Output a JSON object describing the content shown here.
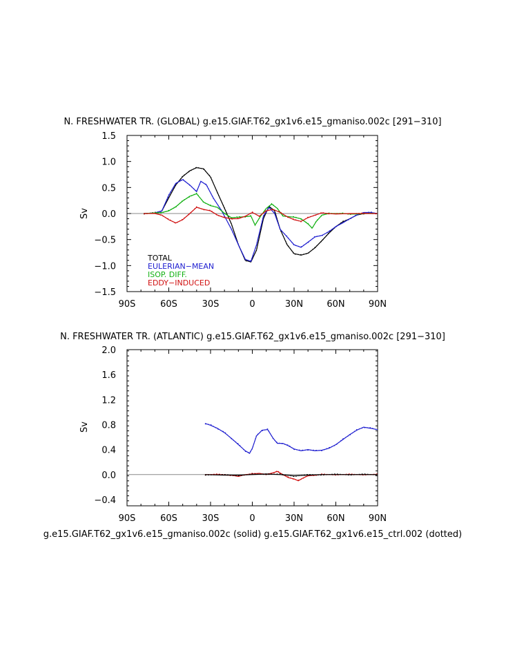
{
  "colors": {
    "total": "#000000",
    "eulerian": "#2020d0",
    "isop": "#10b010",
    "eddy": "#d01010",
    "zero_line": "#888888"
  },
  "footer": "g.e15.GIAF.T62_gx1v6.e15_gmaniso.002c (solid) g.e15.GIAF.T62_gx1v6.e15_ctrl.002 (dotted)",
  "chart_data": [
    {
      "type": "line",
      "title": "N. FRESHWATER TR. (GLOBAL) g.e15.GIAF.T62_gx1v6.e15_gmaniso.002c [291−310]",
      "ylabel": "Sv",
      "xlim": [
        -90,
        90
      ],
      "ylim": [
        -1.5,
        1.5
      ],
      "x_ticks": [
        -90,
        -60,
        -30,
        0,
        30,
        60,
        90
      ],
      "x_tick_labels": [
        "90S",
        "60S",
        "30S",
        "0",
        "30N",
        "60N",
        "90N"
      ],
      "y_ticks": [
        -1.5,
        -1.0,
        -0.5,
        0.0,
        0.5,
        1.0,
        1.5
      ],
      "y_tick_labels": [
        "−1.5",
        "−1.0",
        "−0.5",
        "0.0",
        "0.5",
        "1.0",
        "1.5"
      ],
      "legend": [
        "TOTAL",
        "EULERIAN−MEAN",
        "ISOP. DIFF.",
        "EDDY−INDUCED"
      ],
      "legend_placement": "lower-left",
      "series": [
        {
          "name": "TOTAL",
          "color": "total",
          "x": [
            -78,
            -70,
            -65,
            -60,
            -55,
            -50,
            -45,
            -40,
            -35,
            -30,
            -25,
            -20,
            -15,
            -10,
            -5,
            -1,
            3,
            8,
            12,
            16,
            20,
            25,
            30,
            35,
            40,
            45,
            50,
            55,
            60,
            65,
            70,
            75,
            80,
            85,
            90
          ],
          "y": [
            0,
            0.01,
            0.05,
            0.3,
            0.55,
            0.71,
            0.82,
            0.88,
            0.86,
            0.7,
            0.4,
            0.1,
            -0.2,
            -0.6,
            -0.9,
            -0.93,
            -0.7,
            -0.1,
            0.14,
            0.05,
            -0.3,
            -0.6,
            -0.77,
            -0.8,
            -0.76,
            -0.66,
            -0.52,
            -0.38,
            -0.25,
            -0.16,
            -0.1,
            -0.03,
            0,
            0.01,
            0
          ]
        },
        {
          "name": "EULERIAN−MEAN",
          "color": "eulerian",
          "x": [
            -78,
            -70,
            -65,
            -60,
            -55,
            -50,
            -45,
            -40,
            -37,
            -33,
            -28,
            -22,
            -15,
            -10,
            -5,
            -1,
            3,
            8,
            12,
            16,
            20,
            25,
            30,
            35,
            40,
            45,
            50,
            55,
            60,
            65,
            70,
            75,
            80,
            85,
            90
          ],
          "y": [
            0,
            0.01,
            0.05,
            0.35,
            0.58,
            0.65,
            0.55,
            0.42,
            0.62,
            0.55,
            0.3,
            0.05,
            -0.3,
            -0.6,
            -0.88,
            -0.92,
            -0.6,
            -0.05,
            0.12,
            0.0,
            -0.3,
            -0.45,
            -0.6,
            -0.65,
            -0.55,
            -0.45,
            -0.42,
            -0.35,
            -0.25,
            -0.18,
            -0.1,
            -0.03,
            0.02,
            0.02,
            0
          ]
        },
        {
          "name": "ISOP. DIFF.",
          "color": "isop",
          "x": [
            -78,
            -70,
            -65,
            -60,
            -55,
            -50,
            -45,
            -40,
            -35,
            -30,
            -25,
            -20,
            -15,
            -10,
            -5,
            -1,
            2,
            6,
            10,
            14,
            18,
            22,
            26,
            30,
            35,
            40,
            43,
            46,
            50,
            55,
            60,
            65,
            70,
            75,
            80,
            85,
            90
          ],
          "y": [
            0,
            0.01,
            0.02,
            0.05,
            0.13,
            0.24,
            0.33,
            0.38,
            0.22,
            0.15,
            0.12,
            0.0,
            -0.08,
            -0.07,
            -0.06,
            -0.05,
            -0.22,
            -0.05,
            0.1,
            0.18,
            0.1,
            -0.05,
            -0.06,
            -0.07,
            -0.1,
            -0.2,
            -0.28,
            -0.15,
            -0.03,
            0.0,
            0.0,
            0.0,
            -0.01,
            -0.01,
            0.0,
            0.0,
            0.0
          ]
        },
        {
          "name": "EDDY−INDUCED",
          "color": "eddy",
          "x": [
            -78,
            -70,
            -65,
            -60,
            -55,
            -50,
            -45,
            -40,
            -35,
            -30,
            -25,
            -20,
            -15,
            -10,
            -5,
            0,
            5,
            10,
            15,
            20,
            25,
            30,
            35,
            40,
            45,
            50,
            55,
            60,
            70,
            80,
            90
          ],
          "y": [
            0,
            0,
            -0.03,
            -0.12,
            -0.18,
            -0.12,
            0.0,
            0.12,
            0.08,
            0.05,
            -0.03,
            -0.08,
            -0.1,
            -0.1,
            -0.05,
            0.02,
            -0.05,
            0.05,
            0.08,
            0.02,
            -0.06,
            -0.12,
            -0.15,
            -0.08,
            -0.03,
            0.01,
            0.0,
            -0.01,
            0.0,
            0.0,
            0.0
          ]
        }
      ]
    },
    {
      "type": "line",
      "title": "N. FRESHWATER TR. (ATLANTIC) g.e15.GIAF.T62_gx1v6.e15_gmaniso.002c [291−310]",
      "ylabel": "Sv",
      "xlim": [
        -90,
        90
      ],
      "ylim": [
        -0.5,
        2.0
      ],
      "x_ticks": [
        -90,
        -60,
        -30,
        0,
        30,
        60,
        90
      ],
      "x_tick_labels": [
        "90S",
        "60S",
        "30S",
        "0",
        "30N",
        "60N",
        "90N"
      ],
      "y_ticks": [
        -0.4,
        0.0,
        0.4,
        0.8,
        1.2,
        1.6,
        2.0
      ],
      "y_tick_labels": [
        "−0.4",
        "0.0",
        "0.4",
        "0.8",
        "1.2",
        "1.6",
        "2.0"
      ],
      "series": [
        {
          "name": "EULERIAN−MEAN",
          "color": "eulerian",
          "x": [
            -34,
            -30,
            -25,
            -20,
            -15,
            -10,
            -5,
            -2,
            0,
            3,
            7,
            11,
            15,
            18,
            22,
            26,
            30,
            35,
            40,
            45,
            50,
            55,
            60,
            65,
            70,
            75,
            80,
            85,
            90
          ],
          "y": [
            0.82,
            0.79,
            0.74,
            0.67,
            0.58,
            0.48,
            0.38,
            0.34,
            0.42,
            0.62,
            0.71,
            0.72,
            0.58,
            0.5,
            0.5,
            0.46,
            0.41,
            0.38,
            0.4,
            0.38,
            0.39,
            0.42,
            0.48,
            0.56,
            0.64,
            0.71,
            0.76,
            0.74,
            0.72
          ]
        },
        {
          "name": "EDDY−INDUCED",
          "color": "eddy",
          "x": [
            -34,
            -25,
            -15,
            -10,
            -5,
            0,
            5,
            10,
            15,
            18,
            22,
            26,
            30,
            33,
            36,
            40,
            45,
            50,
            60,
            70,
            80,
            90
          ],
          "y": [
            0.0,
            0.0,
            -0.01,
            -0.03,
            0.0,
            0.01,
            0.02,
            0.0,
            0.03,
            0.05,
            0.0,
            -0.05,
            -0.07,
            -0.1,
            -0.06,
            -0.02,
            -0.01,
            0.0,
            0.0,
            0.0,
            0.0,
            0.0
          ]
        },
        {
          "name": "TOTAL",
          "color": "total",
          "x": [
            -34,
            -20,
            -10,
            0,
            10,
            20,
            30,
            40,
            50,
            60,
            70,
            80,
            90
          ],
          "y": [
            0.0,
            -0.01,
            -0.01,
            0.0,
            0.01,
            0.0,
            -0.02,
            -0.01,
            0.0,
            0.0,
            0.0,
            0.0,
            0.0
          ]
        }
      ]
    }
  ]
}
